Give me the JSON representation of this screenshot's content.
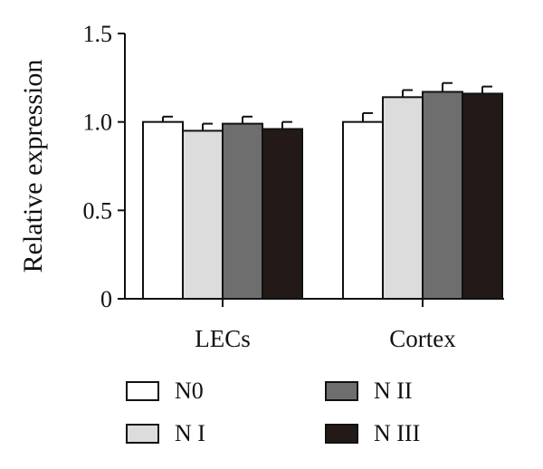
{
  "chart_data": {
    "type": "bar",
    "title": "",
    "xlabel": "",
    "ylabel": "Relative expression",
    "ylim": [
      0,
      1.5
    ],
    "yticks": [
      {
        "value": 0,
        "label": "0"
      },
      {
        "value": 0.5,
        "label": "0.5"
      },
      {
        "value": 1.0,
        "label": "1.0"
      },
      {
        "value": 1.5,
        "label": "1.5"
      }
    ],
    "categories": [
      "LECs",
      "Cortex"
    ],
    "series": [
      {
        "name": "N0",
        "color": "#ffffff",
        "values": [
          1.0,
          1.0
        ],
        "errors": [
          0.03,
          0.05
        ]
      },
      {
        "name": "N I",
        "color": "#dcdcdd",
        "values": [
          0.95,
          1.14
        ],
        "errors": [
          0.04,
          0.04
        ]
      },
      {
        "name": "N II",
        "color": "#6e6e6e",
        "values": [
          0.99,
          1.17
        ],
        "errors": [
          0.04,
          0.05
        ]
      },
      {
        "name": "N III",
        "color": "#231a18",
        "values": [
          0.96,
          1.16
        ],
        "errors": [
          0.04,
          0.04
        ]
      }
    ],
    "grid": false,
    "legend_position": "bottom"
  }
}
